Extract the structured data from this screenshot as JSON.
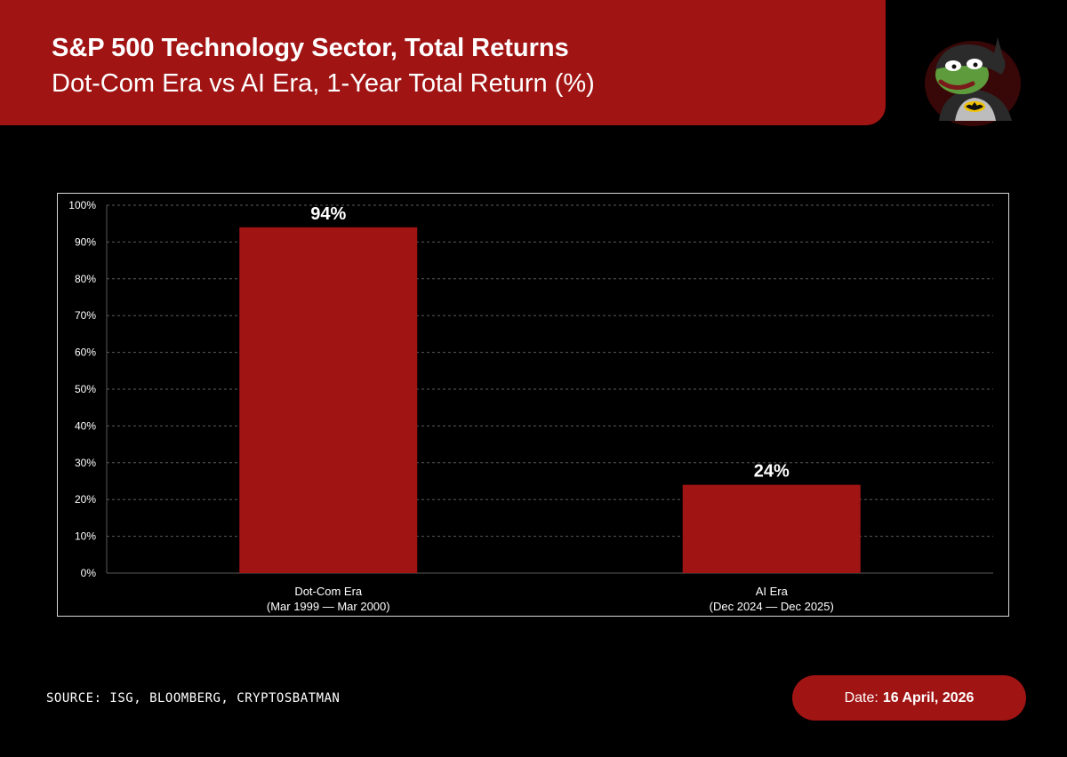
{
  "header": {
    "title": "S&P 500 Technology Sector, Total Returns",
    "subtitle": "Dot-Com Era vs AI Era, 1-Year Total Return (%)"
  },
  "colors": {
    "accent": "#a11414",
    "bar": "#a11414",
    "background": "#000000",
    "grid": "#5a5a5a",
    "text": "#ffffff"
  },
  "mascot": {
    "icon": "batman-pepe-mascot-icon"
  },
  "chart_data": {
    "type": "bar",
    "title": "S&P 500 Technology Sector, Total Returns",
    "subtitle": "Dot-Com Era vs AI Era, 1-Year Total Return (%)",
    "xlabel": "",
    "ylabel": "",
    "ylim": [
      0,
      100
    ],
    "yticks": [
      0,
      10,
      20,
      30,
      40,
      50,
      60,
      70,
      80,
      90,
      100
    ],
    "ytick_labels": [
      "0%",
      "10%",
      "20%",
      "30%",
      "40%",
      "50%",
      "60%",
      "70%",
      "80%",
      "90%",
      "100%"
    ],
    "grid": true,
    "categories": [
      [
        "Dot-Com Era",
        "(Mar 1999 — Mar 2000)"
      ],
      [
        "AI Era",
        "(Dec 2024 — Dec 2025)"
      ]
    ],
    "values": [
      94,
      24
    ],
    "data_labels": [
      "94%",
      "24%"
    ]
  },
  "footer": {
    "source": "SOURCE: ISG, BLOOMBERG, CRYPTOSBATMAN",
    "date_prefix": "Date:",
    "date_value": "16 April, 2026"
  }
}
